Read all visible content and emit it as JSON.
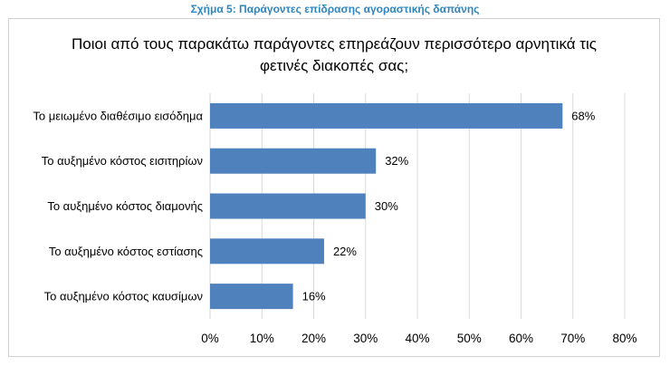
{
  "figure_caption": "Σχήμα 5: Παράγοντες επίδρασης αγοραστικής δαπάνης",
  "colors": {
    "bar": "#4f81bd",
    "gridline": "#d9d9d9",
    "caption": "#2e86c1"
  },
  "chart_data": {
    "type": "bar",
    "orientation": "horizontal",
    "title_lines": [
      "Ποιοι από τους παρακάτω παράγοντες επηρεάζουν περισσότερο αρνητικά τις",
      "φετινές διακοπές σας;"
    ],
    "categories": [
      "Το μειωμένο διαθέσιμο εισόδημα",
      "Το αυξημένο κόστος εισιτηρίων",
      "Το αυξημένο κόστος διαμονής",
      "Το αυξημένο κόστος εστίασης",
      "Το αυξημένο κόστος καυσίμων"
    ],
    "values": [
      68,
      32,
      30,
      22,
      16
    ],
    "value_labels": [
      "68%",
      "32%",
      "30%",
      "22%",
      "16%"
    ],
    "xlim": [
      0,
      80
    ],
    "xticks": [
      0,
      10,
      20,
      30,
      40,
      50,
      60,
      70,
      80
    ],
    "xtick_labels": [
      "0%",
      "10%",
      "20%",
      "30%",
      "40%",
      "50%",
      "60%",
      "70%",
      "80%"
    ],
    "grid": true,
    "legend": "none"
  }
}
